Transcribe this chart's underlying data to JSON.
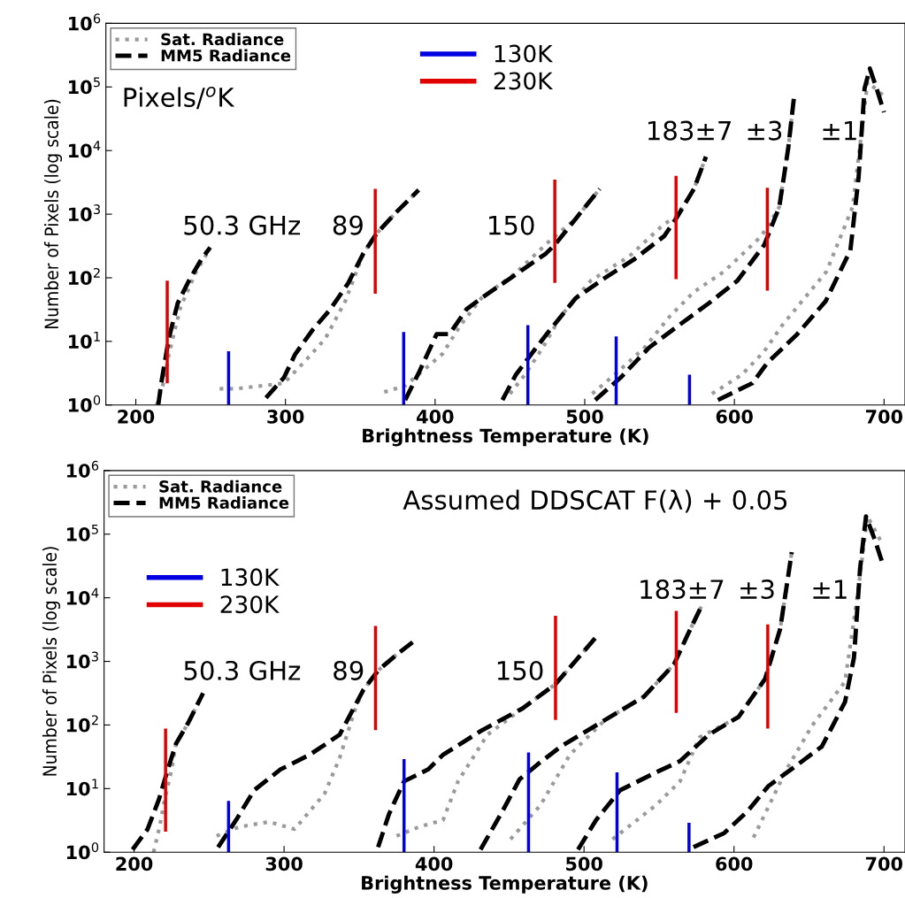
{
  "chart_data": [
    {
      "type": "line",
      "xlabel": "Brightness Temperature (K)",
      "ylabel": "Number of Pixels (log scale)",
      "log": "y",
      "grid": false,
      "legend": "top left",
      "xlim": [
        180,
        714
      ],
      "xticks": [
        200,
        300,
        400,
        500,
        600,
        700
      ],
      "ylim": [
        1,
        1000000
      ],
      "yticks": [
        {
          "value": 1,
          "label": "10$^{0}$"
        },
        {
          "value": 10,
          "label": "10$^{1}$"
        },
        {
          "value": 100,
          "label": "10$^{2}$"
        },
        {
          "value": 1000,
          "label": "10$^{3}$"
        },
        {
          "value": 10000,
          "label": "10$^{4}$"
        },
        {
          "value": 100000,
          "label": "10$^{5}$"
        },
        {
          "value": 1000000,
          "label": "10$^{6}$"
        }
      ],
      "series": [
        {
          "name": "Sat. Radiance",
          "color": "#9a9a9a",
          "line_style": "dotted",
          "x": [
            214,
            218,
            222,
            226,
            230,
            240,
            248
          ],
          "values": [
            1,
            2,
            6,
            15,
            35,
            120,
            250
          ]
        },
        {
          "name": "MM5 Radiance",
          "color": "#000000",
          "line_style": "dashed",
          "x": [
            215,
            217,
            222,
            228,
            235.5,
            243.8,
            249.7
          ],
          "values": [
            1,
            2.2,
            11,
            40,
            90,
            195,
            300
          ]
        },
        {
          "color": "#9a9a9a",
          "line_style": "dotted",
          "x": [
            256,
            267,
            299,
            312,
            326.6,
            340,
            352,
            361,
            374,
            389
          ],
          "values": [
            1.8,
            1.8,
            2.2,
            4.6,
            11,
            43,
            240,
            500,
            1070,
            2400
          ]
        },
        {
          "color": "#000000",
          "line_style": "dashed",
          "x": [
            287,
            299,
            306.5,
            318,
            330,
            342,
            352,
            361,
            374,
            389
          ],
          "values": [
            1.3,
            2.7,
            6.3,
            15,
            32,
            83,
            240,
            500,
            1070,
            2400
          ]
        },
        {
          "color": "#9a9a9a",
          "line_style": "dotted",
          "x": [
            366,
            380,
            395,
            405,
            417,
            431,
            454,
            476,
            494,
            510
          ],
          "values": [
            1.6,
            2,
            4,
            6.4,
            18,
            48,
            120,
            370,
            850,
            2500
          ]
        },
        {
          "color": "#000000",
          "line_style": "dashed",
          "x": [
            380,
            389.6,
            401,
            409.5,
            421,
            431,
            454,
            474,
            480,
            494,
            510
          ],
          "values": [
            1.2,
            3.4,
            13,
            13,
            32,
            48,
            113,
            240,
            330,
            850,
            2500
          ]
        },
        {
          "color": "#9a9a9a",
          "line_style": "dotted",
          "x": [
            450,
            460,
            472,
            484,
            504,
            530,
            553,
            561,
            573,
            581
          ],
          "values": [
            1.5,
            3,
            8,
            25,
            90,
            220,
            700,
            900,
            2500,
            8000
          ]
        },
        {
          "color": "#000000",
          "line_style": "dashed",
          "x": [
            445,
            454,
            464.5,
            474.5,
            494,
            513.6,
            533,
            553,
            561,
            573,
            581
          ],
          "values": [
            1.2,
            3,
            6.4,
            13,
            48,
            100,
            195,
            450,
            850,
            2500,
            8000
          ]
        },
        {
          "color": "#9a9a9a",
          "line_style": "dotted",
          "x": [
            505,
            520,
            540,
            557,
            573,
            593,
            618,
            630,
            636,
            640
          ],
          "values": [
            1.5,
            3,
            8,
            25,
            60,
            125,
            450,
            1300,
            11000,
            75000
          ]
        },
        {
          "color": "#000000",
          "line_style": "dashed",
          "x": [
            507,
            524,
            543,
            563,
            583,
            602,
            620,
            630,
            636,
            640
          ],
          "values": [
            1.2,
            2.7,
            8,
            18,
            40,
            90,
            330,
            1300,
            11000,
            75000
          ]
        },
        {
          "color": "#9a9a9a",
          "line_style": "dotted",
          "x": [
            585,
            605,
            620,
            632,
            661.5,
            679,
            689,
            699
          ],
          "values": [
            1.5,
            3,
            7,
            18,
            125,
            1300,
            120000,
            75000
          ]
        },
        {
          "color": "#000000",
          "line_style": "dashed",
          "x": [
            589,
            612,
            622,
            642,
            661,
            677.5,
            683,
            687,
            690.5,
            695,
            700
          ],
          "values": [
            1.2,
            2.2,
            4.6,
            13,
            43,
            270,
            3800,
            95000,
            195000,
            95000,
            40000
          ]
        },
        {
          "name": "230K",
          "color": "#e00000",
          "line_style": "solid",
          "x": [
            221,
            221
          ],
          "values": [
            2.2,
            90
          ]
        },
        {
          "name": "130K",
          "color": "#0000e0",
          "line_style": "solid",
          "x": [
            262,
            262
          ],
          "values": [
            1,
            7
          ]
        },
        {
          "color": "#e00000",
          "line_style": "solid",
          "x": [
            360,
            360
          ],
          "values": [
            56,
            2500
          ]
        },
        {
          "color": "#0000e0",
          "line_style": "solid",
          "x": [
            379,
            379
          ],
          "values": [
            1,
            14
          ]
        },
        {
          "color": "#0000e0",
          "line_style": "solid",
          "x": [
            462,
            462
          ],
          "values": [
            1,
            18
          ]
        },
        {
          "color": "#e00000",
          "line_style": "solid",
          "x": [
            480,
            480
          ],
          "values": [
            83,
            3500
          ]
        },
        {
          "color": "#0000e0",
          "line_style": "solid",
          "x": [
            521,
            521
          ],
          "values": [
            1,
            12
          ]
        },
        {
          "color": "#e00000",
          "line_style": "solid",
          "x": [
            561,
            561
          ],
          "values": [
            95,
            4000
          ]
        },
        {
          "color": "#0000e0",
          "line_style": "solid",
          "x": [
            570,
            570
          ],
          "values": [
            1,
            3
          ]
        },
        {
          "color": "#e00000",
          "line_style": "solid",
          "x": [
            622,
            622
          ],
          "values": [
            63,
            2600
          ]
        }
      ],
      "annotations": [
        "Pixels/$^{o}$K",
        "50.3 GHz",
        "89",
        "150",
        "183±7",
        "±3",
        "±1"
      ]
    },
    {
      "type": "line",
      "xlabel": "Brightness Temperature (K)",
      "ylabel": "Number of Pixels (log scale)",
      "log": "y",
      "grid": false,
      "legend": "top left",
      "xlim": [
        180,
        714
      ],
      "xticks": [
        200,
        300,
        400,
        500,
        600,
        700
      ],
      "ylim": [
        1,
        1000000
      ],
      "yticks": [
        {
          "value": 1,
          "label": "10$^{0}$"
        },
        {
          "value": 10,
          "label": "10$^{1}$"
        },
        {
          "value": 100,
          "label": "10$^{2}$"
        },
        {
          "value": 1000,
          "label": "10$^{3}$"
        },
        {
          "value": 10000,
          "label": "10$^{4}$"
        },
        {
          "value": 100000,
          "label": "10$^{5}$"
        },
        {
          "value": 1000000,
          "label": "10$^{6}$"
        }
      ],
      "series": [
        {
          "name": "Sat. Radiance",
          "color": "#9a9a9a",
          "line_style": "dotted",
          "x": [
            213,
            217,
            220,
            225,
            228,
            236,
            246
          ],
          "values": [
            1,
            2.5,
            6,
            20,
            51,
            107,
            316
          ]
        },
        {
          "name": "MM5 Radiance",
          "color": "#000000",
          "line_style": "dashed",
          "x": [
            199,
            209,
            216.6,
            222.5,
            228,
            236,
            246
          ],
          "values": [
            1.1,
            2.3,
            6.8,
            20,
            51,
            107,
            316
          ]
        },
        {
          "color": "#9a9a9a",
          "line_style": "dotted",
          "x": [
            255,
            270,
            290,
            307,
            327,
            337,
            347,
            352.7,
            362.7,
            374.6,
            388
          ],
          "values": [
            1.8,
            2.5,
            3,
            2.3,
            8.3,
            30,
            166,
            350,
            720,
            1250,
            2200
          ]
        },
        {
          "color": "#000000",
          "line_style": "dashed",
          "x": [
            256,
            268,
            280,
            297.6,
            317,
            337,
            352.7,
            362.7,
            374.6,
            388
          ],
          "values": [
            1.2,
            3.2,
            9.4,
            20,
            34,
            70,
            350,
            720,
            1250,
            2200
          ]
        },
        {
          "color": "#9a9a9a",
          "line_style": "dotted",
          "x": [
            375,
            390,
            406,
            416,
            435.5,
            459,
            481,
            508
          ],
          "values": [
            1.8,
            2.5,
            3.2,
            13,
            70,
            182,
            440,
            2400
          ]
        },
        {
          "color": "#000000",
          "line_style": "dashed",
          "x": [
            362.7,
            370,
            380,
            396,
            406,
            431,
            459,
            481,
            508
          ],
          "values": [
            1.2,
            4,
            13,
            20,
            34,
            80,
            182,
            440,
            2400
          ]
        },
        {
          "color": "#9a9a9a",
          "line_style": "dotted",
          "x": [
            451,
            471,
            490.5,
            514,
            540,
            560,
            569,
            578.7
          ],
          "values": [
            1.6,
            5.5,
            34,
            120,
            280,
            900,
            2600,
            7700
          ]
        },
        {
          "color": "#000000",
          "line_style": "dashed",
          "x": [
            431,
            445.6,
            457,
            469,
            484.6,
            514,
            540,
            560,
            569,
            578.7
          ],
          "values": [
            1.1,
            4.4,
            14,
            24,
            46,
            120,
            280,
            900,
            2600,
            7700
          ]
        },
        {
          "color": "#9a9a9a",
          "line_style": "dotted",
          "x": [
            519,
            548,
            564,
            577,
            603,
            620.7,
            630.8,
            638.5
          ],
          "values": [
            1.6,
            5.5,
            13,
            64,
            134,
            530,
            3250,
            52000
          ]
        },
        {
          "color": "#000000",
          "line_style": "dashed",
          "x": [
            496,
            508,
            524,
            548,
            564,
            583,
            603,
            620.7,
            630.8,
            638.5
          ],
          "values": [
            1.1,
            3.2,
            9.4,
            18,
            27,
            70,
            134,
            530,
            3250,
            52000
          ]
        },
        {
          "color": "#9a9a9a",
          "line_style": "dotted",
          "x": [
            613,
            635,
            652,
            674,
            682,
            689,
            697.6
          ],
          "values": [
            1.7,
            20,
            97,
            480,
            9600,
            190000,
            80000
          ]
        },
        {
          "color": "#000000",
          "line_style": "dashed",
          "x": [
            573,
            593.5,
            609,
            623,
            642.6,
            658.6,
            674,
            680,
            684,
            688,
            694,
            699
          ],
          "values": [
            1.2,
            2,
            4.4,
            11,
            24,
            46,
            230,
            1150,
            28000,
            190000,
            80000,
            35000
          ]
        },
        {
          "name": "230K",
          "color": "#e00000",
          "line_style": "solid",
          "x": [
            221,
            221
          ],
          "values": [
            2.1,
            88
          ]
        },
        {
          "name": "130K",
          "color": "#0000e0",
          "line_style": "solid",
          "x": [
            263,
            263
          ],
          "values": [
            1,
            6.4
          ]
        },
        {
          "color": "#e00000",
          "line_style": "solid",
          "x": [
            361,
            361
          ],
          "values": [
            83,
            3600
          ]
        },
        {
          "color": "#0000e0",
          "line_style": "solid",
          "x": [
            380,
            380
          ],
          "values": [
            1,
            29
          ]
        },
        {
          "color": "#0000e0",
          "line_style": "solid",
          "x": [
            463,
            463
          ],
          "values": [
            1,
            37
          ]
        },
        {
          "color": "#e00000",
          "line_style": "solid",
          "x": [
            481,
            481
          ],
          "values": [
            120,
            5200
          ]
        },
        {
          "color": "#0000e0",
          "line_style": "solid",
          "x": [
            522,
            522
          ],
          "values": [
            1,
            18
          ]
        },
        {
          "color": "#e00000",
          "line_style": "solid",
          "x": [
            561.5,
            561.5
          ],
          "values": [
            155,
            6200
          ]
        },
        {
          "color": "#0000e0",
          "line_style": "solid",
          "x": [
            570,
            570
          ],
          "values": [
            1,
            2.9
          ]
        },
        {
          "color": "#e00000",
          "line_style": "solid",
          "x": [
            622.5,
            622.5
          ],
          "values": [
            88,
            3800
          ]
        }
      ],
      "annotations": [
        "Assumed DDSCAT F(λ) + 0.05",
        "50.3 GHz",
        "89",
        "150",
        "183±7",
        "±3",
        "±1"
      ]
    }
  ]
}
